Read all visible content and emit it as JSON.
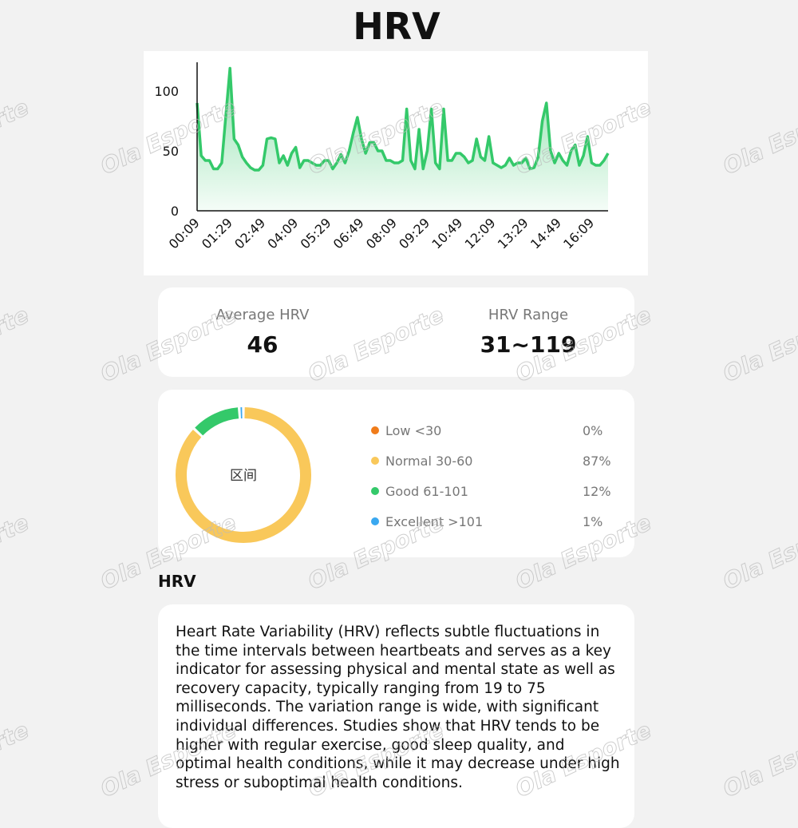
{
  "title": "HRV",
  "chart_data": [
    {
      "type": "line",
      "color": "#34c96a",
      "x": [
        "00:09",
        "00:19",
        "00:29",
        "00:39",
        "00:49",
        "00:59",
        "01:09",
        "01:19",
        "01:29",
        "01:39",
        "01:49",
        "01:59",
        "02:09",
        "02:19",
        "02:29",
        "02:39",
        "02:49",
        "02:59",
        "03:09",
        "03:19",
        "03:29",
        "03:39",
        "03:49",
        "03:59",
        "04:09",
        "04:19",
        "04:29",
        "04:39",
        "04:49",
        "04:59",
        "05:09",
        "05:19",
        "05:29",
        "05:39",
        "05:49",
        "05:59",
        "06:09",
        "06:19",
        "06:29",
        "06:39",
        "06:49",
        "06:59",
        "07:09",
        "07:19",
        "07:29",
        "07:39",
        "07:49",
        "07:59",
        "08:09",
        "08:19",
        "08:29",
        "08:39",
        "08:49",
        "08:59",
        "09:09",
        "09:19",
        "09:29",
        "09:39",
        "09:49",
        "09:59",
        "10:09",
        "10:19",
        "10:29",
        "10:39",
        "10:49",
        "10:59",
        "11:09",
        "11:19",
        "11:29",
        "11:39",
        "11:49",
        "11:59",
        "12:09",
        "12:19",
        "12:29",
        "12:39",
        "12:49",
        "12:59",
        "13:09",
        "13:19",
        "13:29",
        "13:39",
        "13:49",
        "13:59",
        "14:09",
        "14:19",
        "14:29",
        "14:39",
        "14:49",
        "14:59",
        "15:09",
        "15:19",
        "15:29",
        "15:39",
        "15:49",
        "15:59",
        "16:09",
        "16:19",
        "16:29",
        "16:39",
        "16:49"
      ],
      "values": [
        90,
        46,
        42,
        42,
        35,
        35,
        40,
        80,
        119,
        60,
        55,
        45,
        40,
        36,
        34,
        34,
        38,
        60,
        61,
        60,
        40,
        46,
        38,
        48,
        53,
        36,
        42,
        42,
        40,
        38,
        38,
        42,
        42,
        35,
        40,
        47,
        40,
        50,
        65,
        78,
        60,
        48,
        57,
        57,
        50,
        50,
        42,
        42,
        40,
        40,
        42,
        85,
        42,
        35,
        68,
        35,
        50,
        85,
        40,
        35,
        85,
        42,
        42,
        48,
        48,
        45,
        40,
        42,
        60,
        45,
        42,
        62,
        40,
        38,
        36,
        38,
        44,
        38,
        40,
        40,
        44,
        35,
        36,
        45,
        75,
        90,
        50,
        40,
        48,
        42,
        38,
        50,
        55,
        38,
        46,
        62,
        40,
        38,
        38,
        42,
        48
      ],
      "xticks": [
        "00:09",
        "01:29",
        "02:49",
        "04:09",
        "05:29",
        "06:49",
        "08:09",
        "09:29",
        "10:49",
        "12:09",
        "13:29",
        "14:49",
        "16:09"
      ],
      "ylim": [
        0,
        124
      ],
      "yticks": [
        0,
        50,
        100
      ]
    },
    {
      "type": "pie",
      "center_label": "区间",
      "categories": [
        "Low <30",
        "Normal 30-60",
        "Good 61-101",
        "Excellent >101"
      ],
      "values": [
        0,
        87,
        12,
        1
      ],
      "value_labels": [
        "0%",
        "87%",
        "12%",
        "1%"
      ],
      "colors": [
        "#f07c1a",
        "#f9c85a",
        "#34c96a",
        "#3aa8f0"
      ]
    }
  ],
  "stats": [
    {
      "label": "Average HRV",
      "value": "46"
    },
    {
      "label": "HRV Range",
      "value": "31~119"
    }
  ],
  "section_title": "HRV",
  "description": "Heart Rate Variability (HRV) reflects subtle fluctuations in the time intervals between heartbeats and serves as a key indicator for assessing physical and mental state as well as recovery capacity, typically ranging from 19 to 75 milliseconds. The variation range is wide, with significant individual differences. Studies show that HRV tends to be higher with regular exercise, good sleep quality, and optimal health conditions, while it may decrease under high stress or suboptimal health conditions.",
  "watermark": "Ola Esporte"
}
